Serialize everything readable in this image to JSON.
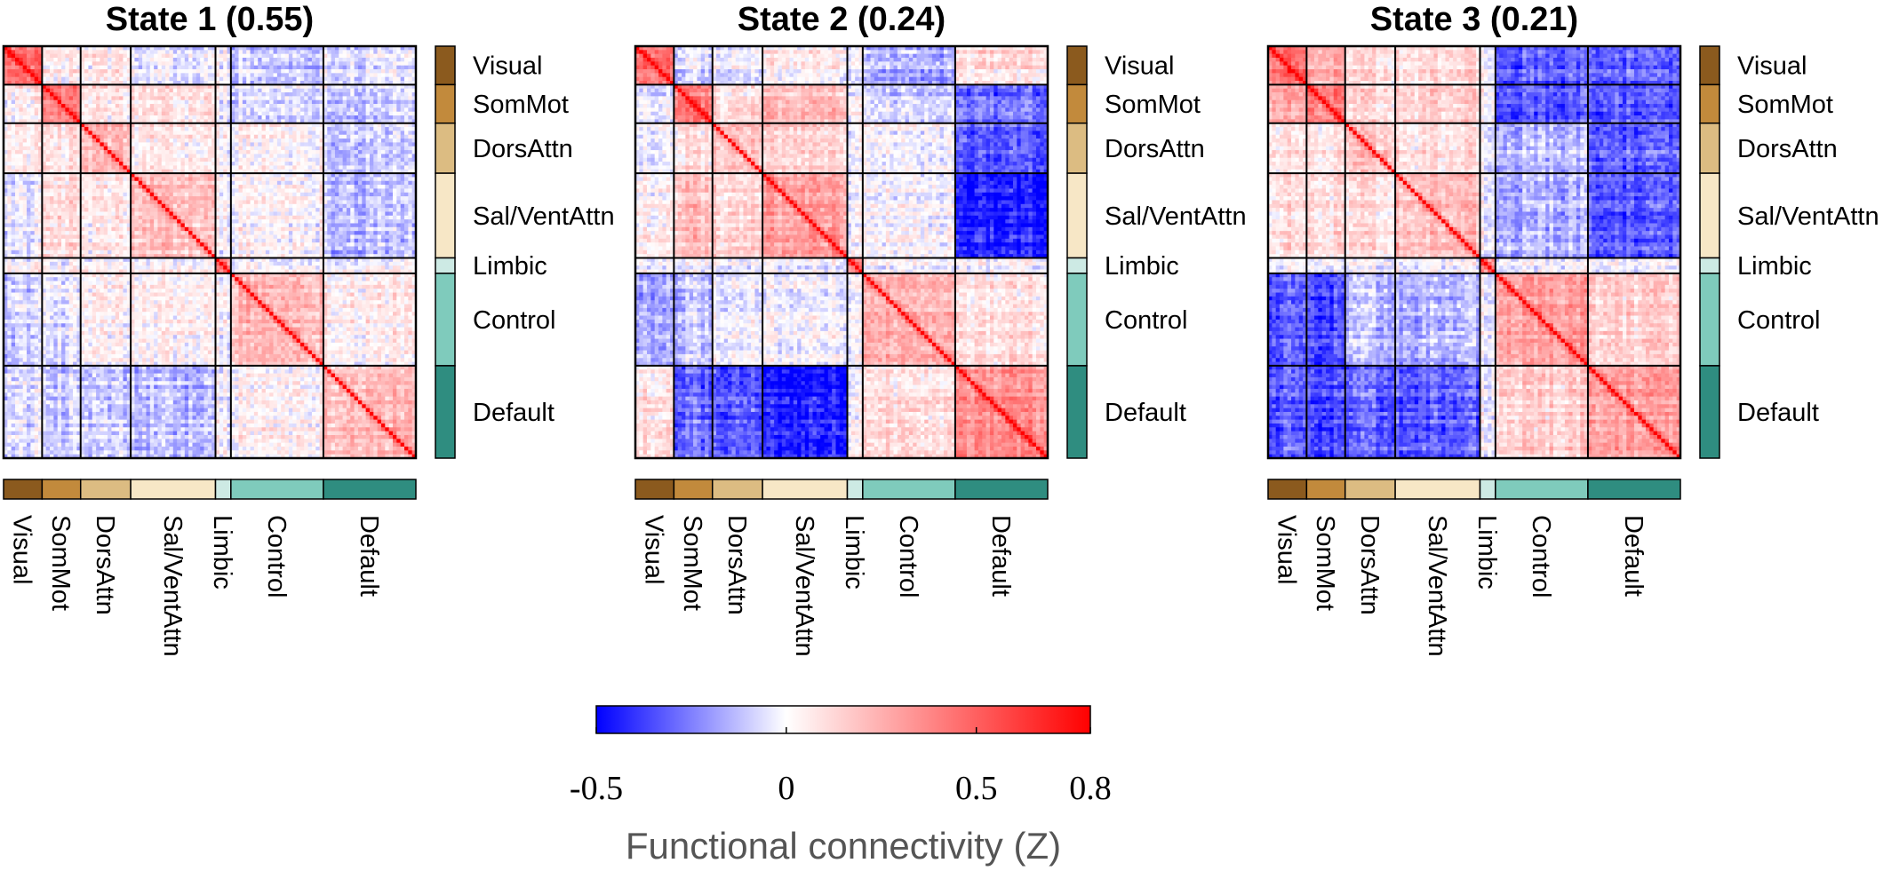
{
  "chart_data": {
    "type": "heatmap",
    "networks": [
      {
        "name": "Visual",
        "size": 10,
        "color": "#8b5a1e"
      },
      {
        "name": "SomMot",
        "size": 10,
        "color": "#c28a3c"
      },
      {
        "name": "DorsAttn",
        "size": 13,
        "color": "#dcbc82"
      },
      {
        "name": "Sal/VentAttn",
        "size": 22,
        "color": "#f7e7c6"
      },
      {
        "name": "Limbic",
        "size": 4,
        "color": "#cdeae4"
      },
      {
        "name": "Control",
        "size": 24,
        "color": "#7fcbbc"
      },
      {
        "name": "Default",
        "size": 24,
        "color": "#2f8d80"
      }
    ],
    "states": [
      {
        "title": "State 1 (0.55)",
        "block_means": [
          [
            0.45,
            0.05,
            0.05,
            -0.05,
            0.0,
            -0.1,
            -0.05
          ],
          [
            0.05,
            0.4,
            0.08,
            0.1,
            0.0,
            -0.05,
            -0.08
          ],
          [
            0.05,
            0.08,
            0.2,
            0.05,
            0.0,
            0.02,
            -0.1
          ],
          [
            -0.05,
            0.1,
            0.05,
            0.18,
            0.0,
            0.02,
            -0.12
          ],
          [
            0.0,
            0.0,
            0.0,
            0.0,
            0.35,
            0.0,
            0.0
          ],
          [
            -0.1,
            -0.05,
            0.02,
            0.02,
            0.0,
            0.22,
            0.05
          ],
          [
            -0.05,
            -0.08,
            -0.1,
            -0.12,
            0.0,
            0.05,
            0.22
          ]
        ]
      },
      {
        "title": "State 2 (0.24)",
        "block_means": [
          [
            0.45,
            -0.05,
            0.0,
            0.05,
            0.0,
            -0.15,
            0.1
          ],
          [
            -0.05,
            0.4,
            0.1,
            0.2,
            0.0,
            -0.1,
            -0.3
          ],
          [
            0.0,
            0.1,
            0.2,
            0.15,
            0.0,
            0.0,
            -0.32
          ],
          [
            0.05,
            0.2,
            0.15,
            0.3,
            0.0,
            0.0,
            -0.45
          ],
          [
            0.0,
            0.0,
            0.0,
            0.0,
            0.35,
            0.0,
            0.0
          ],
          [
            -0.15,
            -0.1,
            0.0,
            0.0,
            0.0,
            0.25,
            0.1
          ],
          [
            0.1,
            -0.3,
            -0.32,
            -0.45,
            0.0,
            0.1,
            0.35
          ]
        ]
      },
      {
        "title": "State 3 (0.21)",
        "block_means": [
          [
            0.45,
            0.25,
            0.1,
            0.1,
            0.0,
            -0.32,
            -0.32
          ],
          [
            0.25,
            0.4,
            0.1,
            0.12,
            0.0,
            -0.35,
            -0.35
          ],
          [
            0.1,
            0.1,
            0.2,
            0.1,
            0.0,
            -0.12,
            -0.3
          ],
          [
            0.1,
            0.12,
            0.1,
            0.2,
            0.0,
            -0.15,
            -0.32
          ],
          [
            0.0,
            0.0,
            0.0,
            0.0,
            0.35,
            0.0,
            0.0
          ],
          [
            -0.32,
            -0.35,
            -0.12,
            -0.15,
            0.0,
            0.3,
            0.15
          ],
          [
            -0.32,
            -0.35,
            -0.3,
            -0.32,
            0.0,
            0.15,
            0.3
          ]
        ]
      }
    ],
    "colorbar": {
      "min": -0.5,
      "max": 0.8,
      "ticks": [
        -0.5,
        0,
        0.5,
        0.8
      ],
      "tick_labels": [
        "-0.5",
        "0",
        "0.5",
        "0.8"
      ],
      "colors": {
        "negative": "#0000ff",
        "zero": "#ffffff",
        "positive": "#ff0000"
      },
      "label": "Functional connectivity (Z)"
    }
  }
}
